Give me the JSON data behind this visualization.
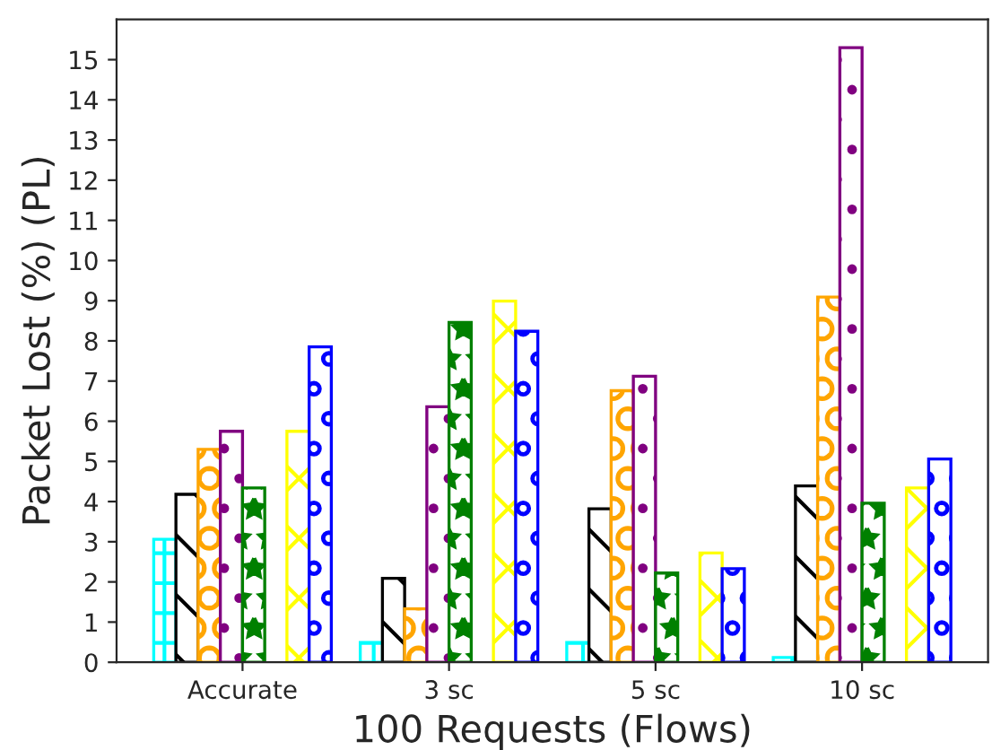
{
  "chart_data": {
    "type": "bar",
    "xlabel": "100 Requests (Flows)",
    "ylabel": "Packet Lost (%) (PL)",
    "categories": [
      "Accurate",
      "3 sc",
      "5 sc",
      "10 sc"
    ],
    "series": [
      {
        "color": "#00ffff",
        "values": [
          3.06,
          0.49,
          0.49,
          0.12
        ]
      },
      {
        "color": "#000000",
        "values": [
          4.18,
          2.09,
          3.82,
          4.39
        ]
      },
      {
        "color": "#ffa500",
        "values": [
          5.3,
          1.33,
          6.76,
          9.09
        ]
      },
      {
        "color": "#800080",
        "values": [
          5.75,
          6.36,
          7.12,
          15.3
        ]
      },
      {
        "color": "#008000",
        "values": [
          4.34,
          8.46,
          2.22,
          3.96
        ]
      },
      {
        "values": [
          null,
          null,
          null,
          null
        ]
      },
      {
        "color": "#ffff00",
        "values": [
          5.75,
          8.99,
          2.72,
          4.34
        ]
      },
      {
        "color": "#0000ff",
        "values": [
          7.85,
          8.24,
          2.33,
          5.06
        ]
      }
    ],
    "ylim": [
      0,
      16
    ],
    "yticks": [
      0,
      1,
      2,
      3,
      4,
      5,
      6,
      7,
      8,
      9,
      10,
      11,
      12,
      13,
      14,
      15
    ],
    "grid": false,
    "legend": false
  }
}
